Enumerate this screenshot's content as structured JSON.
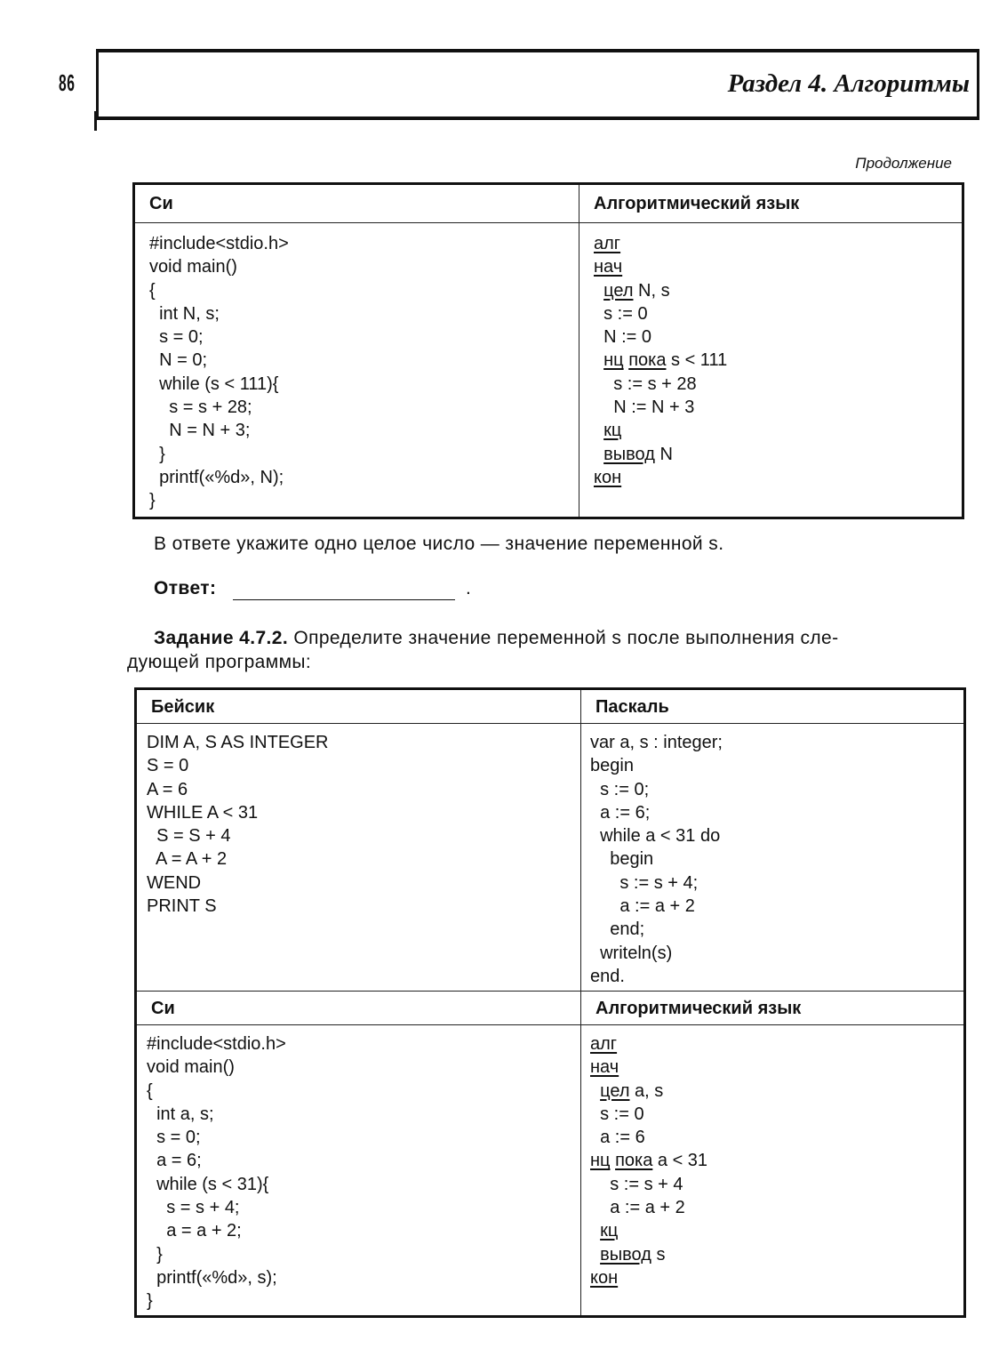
{
  "page_number": "86",
  "section_title": "Раздел 4. Алгоритмы",
  "continuation_label": "Продолжение",
  "table1": {
    "headers": [
      "Си",
      "Алгоритмический язык"
    ],
    "cells": [
      [
        [
          [
            {
              "t": "#include<stdio.h>"
            }
          ],
          [
            {
              "t": "void main()"
            }
          ],
          [
            {
              "t": "{"
            }
          ],
          [
            {
              "t": "  int N, s;"
            }
          ],
          [
            {
              "t": "  s = 0;"
            }
          ],
          [
            {
              "t": "  N = 0;"
            }
          ],
          [
            {
              "t": "  while (s < 111){"
            }
          ],
          [
            {
              "t": "    s = s + 28;"
            }
          ],
          [
            {
              "t": "    N = N + 3;"
            }
          ],
          [
            {
              "t": "  }"
            }
          ],
          [
            {
              "t": "  printf(«%d», N);"
            }
          ],
          [
            {
              "t": "}"
            }
          ]
        ],
        [
          [
            {
              "t": "алг",
              "u": true
            }
          ],
          [
            {
              "t": "нач",
              "u": true
            }
          ],
          [
            {
              "t": "  "
            },
            {
              "t": "цел",
              "u": true
            },
            {
              "t": " N, s"
            }
          ],
          [
            {
              "t": "  s := 0"
            }
          ],
          [
            {
              "t": "  N := 0"
            }
          ],
          [
            {
              "t": "  "
            },
            {
              "t": "нц",
              "u": true
            },
            {
              "t": " "
            },
            {
              "t": "пока",
              "u": true
            },
            {
              "t": " s < 111"
            }
          ],
          [
            {
              "t": "    s := s + 28"
            }
          ],
          [
            {
              "t": "    N := N + 3"
            }
          ],
          [
            {
              "t": "  "
            },
            {
              "t": "кц",
              "u": true
            }
          ],
          [
            {
              "t": "  "
            },
            {
              "t": "вывод",
              "u": true
            },
            {
              "t": " N"
            }
          ],
          [
            {
              "t": "кон",
              "u": true
            }
          ]
        ]
      ]
    ]
  },
  "answer_instruction": "В ответе укажите одно целое число — значение переменной s.",
  "answer_label": "Ответ:",
  "answer_value": "",
  "answer_end": ".",
  "task": {
    "label": "Задание 4.7.2.",
    "text_line1": " Определите значение переменной s после выполнения сле-",
    "text_line2": "дующей программы:"
  },
  "table2": {
    "headers": [
      "Бейсик",
      "Паскаль",
      "Си",
      "Алгоритмический язык"
    ],
    "cells": [
      [
        [
          [
            {
              "t": "DIM A, S AS INTEGER"
            }
          ],
          [
            {
              "t": "S = 0"
            }
          ],
          [
            {
              "t": "A = 6"
            }
          ],
          [
            {
              "t": "WHILE A < 31"
            }
          ],
          [
            {
              "t": "  S = S + 4"
            }
          ],
          [
            {
              "t": "  A = A + 2"
            }
          ],
          [
            {
              "t": "WEND"
            }
          ],
          [
            {
              "t": "PRINT S"
            }
          ]
        ],
        [
          [
            {
              "t": "var a, s : integer;"
            }
          ],
          [
            {
              "t": "begin"
            }
          ],
          [
            {
              "t": "  s := 0;"
            }
          ],
          [
            {
              "t": "  a := 6;"
            }
          ],
          [
            {
              "t": "  while a < 31 do"
            }
          ],
          [
            {
              "t": "    begin"
            }
          ],
          [
            {
              "t": "      s := s + 4;"
            }
          ],
          [
            {
              "t": "      a := a + 2"
            }
          ],
          [
            {
              "t": "    end;"
            }
          ],
          [
            {
              "t": "  writeln(s)"
            }
          ],
          [
            {
              "t": "end."
            }
          ]
        ]
      ],
      [
        [
          [
            {
              "t": "#include<stdio.h>"
            }
          ],
          [
            {
              "t": "void main()"
            }
          ],
          [
            {
              "t": "{"
            }
          ],
          [
            {
              "t": "  int a, s;"
            }
          ],
          [
            {
              "t": "  s = 0;"
            }
          ],
          [
            {
              "t": "  a = 6;"
            }
          ],
          [
            {
              "t": "  while (s < 31){"
            }
          ],
          [
            {
              "t": "    s = s + 4;"
            }
          ],
          [
            {
              "t": "    a = a + 2;"
            }
          ],
          [
            {
              "t": "  }"
            }
          ],
          [
            {
              "t": "  printf(«%d», s);"
            }
          ],
          [
            {
              "t": "}"
            }
          ]
        ],
        [
          [
            {
              "t": "алг",
              "u": true
            }
          ],
          [
            {
              "t": "нач",
              "u": true
            }
          ],
          [
            {
              "t": "  "
            },
            {
              "t": "цел",
              "u": true
            },
            {
              "t": " a, s"
            }
          ],
          [
            {
              "t": "  s := 0"
            }
          ],
          [
            {
              "t": "  a := 6"
            }
          ],
          [
            {
              "t": "нц",
              "u": true
            },
            {
              "t": " "
            },
            {
              "t": "пока",
              "u": true
            },
            {
              "t": " a < 31"
            }
          ],
          [
            {
              "t": "    s := s + 4"
            }
          ],
          [
            {
              "t": "    a := a + 2"
            }
          ],
          [
            {
              "t": "  "
            },
            {
              "t": "кц",
              "u": true
            }
          ],
          [
            {
              "t": "  "
            },
            {
              "t": "вывод",
              "u": true
            },
            {
              "t": " s"
            }
          ],
          [
            {
              "t": "кон",
              "u": true
            }
          ]
        ]
      ]
    ]
  }
}
